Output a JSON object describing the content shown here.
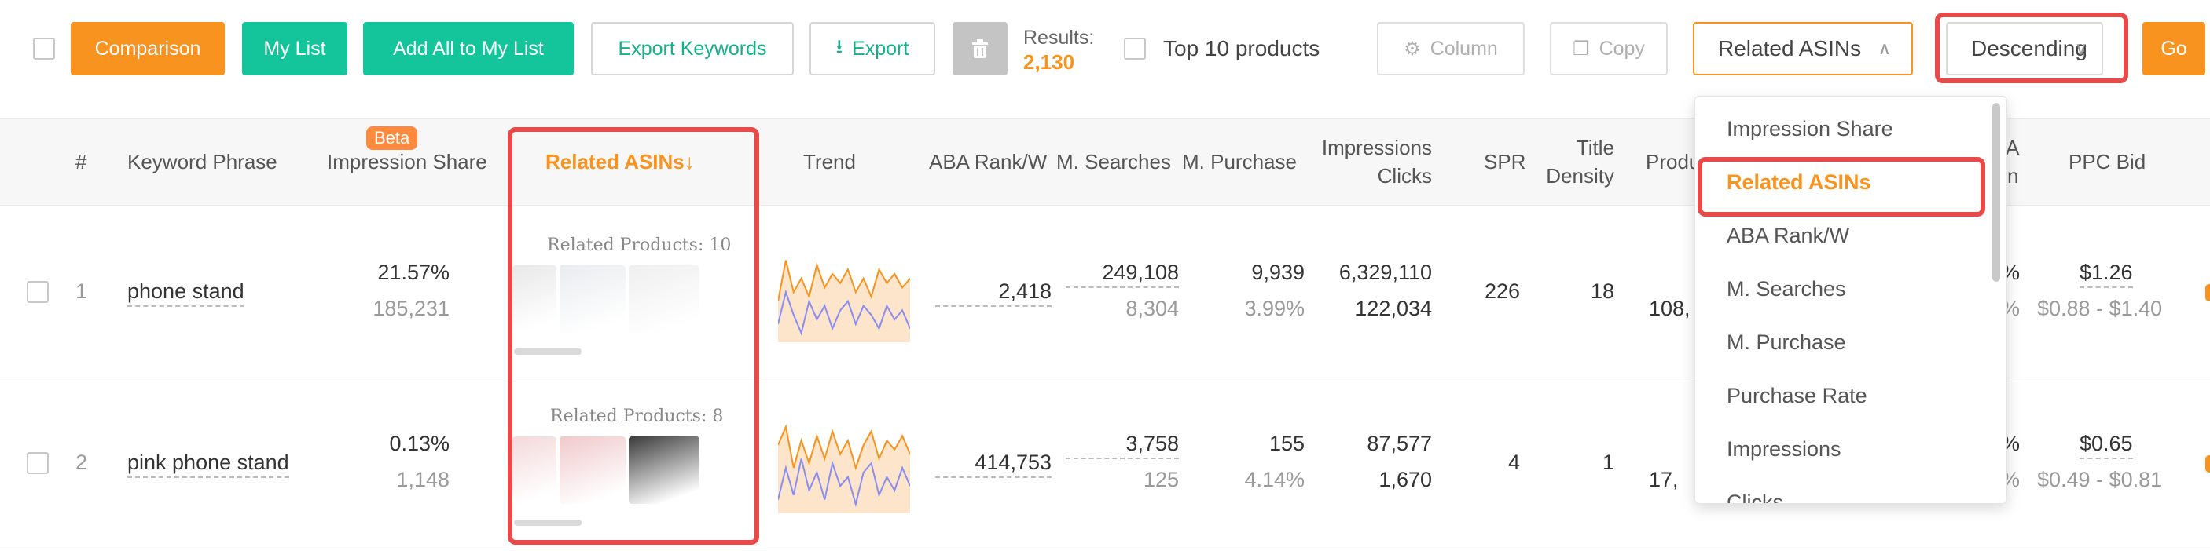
{
  "toolbar": {
    "comparison": "Comparison",
    "my_list": "My List",
    "add_all": "Add All to My List",
    "export_keywords": "Export Keywords",
    "export": "Export",
    "results_label": "Results:",
    "results_value": "2,130",
    "top10": "Top 10 products",
    "column": "Column",
    "copy": "Copy",
    "sort_field": "Related ASINs",
    "sort_order": "Descending",
    "go": "Go"
  },
  "icons": {
    "export": "download-icon",
    "delete": "trash-icon",
    "column": "gear-icon",
    "copy": "copy-icon",
    "chevron_up": "chevron-up-icon",
    "chevron_down": "chevron-down-icon"
  },
  "table": {
    "headers": {
      "index": "#",
      "keyword": "Keyword Phrase",
      "beta": "Beta",
      "impression_share": "Impression Share",
      "related_asins": "Related ASINs↓",
      "trend": "Trend",
      "aba_rank": "ABA Rank/W",
      "m_searches": "M. Searches",
      "m_purchase": "M. Purchase",
      "impressions": "Impressions",
      "clicks": "Clicks",
      "spr": "SPR",
      "title": "Title",
      "density": "Density",
      "products": "Produ",
      "partial_a": "A",
      "partial_n": "n",
      "ppc_bid": "PPC Bid"
    },
    "rows": [
      {
        "index": "1",
        "keyword": "phone stand",
        "impression_share": "21.57%",
        "impression_share_sub": "185,231",
        "related_products": "Related Products: 10",
        "aba_rank": "2,418",
        "m_searches": "249,108",
        "m_searches_sub": "8,304",
        "m_purchase": "9,939",
        "m_purchase_sub": "3.99%",
        "impressions": "6,329,110",
        "clicks": "122,034",
        "spr": "226",
        "title_density": "18",
        "products": "108,",
        "partial_pct": "%",
        "partial_pct_sub": "%",
        "ppc_bid": "$1.26",
        "ppc_range": "$0.88 - $1.40",
        "trend": {
          "search": [
            0.55,
            0.1,
            0.45,
            0.3,
            0.5,
            0.15,
            0.4,
            0.25,
            0.35,
            0.2,
            0.45,
            0.3,
            0.5,
            0.2,
            0.35,
            0.25,
            0.4,
            0.3
          ],
          "purchase": [
            0.8,
            0.45,
            0.7,
            0.9,
            0.55,
            0.75,
            0.6,
            0.85,
            0.65,
            0.55,
            0.8,
            0.6,
            0.7,
            0.85,
            0.6,
            0.75,
            0.65,
            0.85
          ]
        },
        "thumbs": [
          "#e8e8e8",
          "#e9ecef",
          "#efefef"
        ]
      },
      {
        "index": "2",
        "keyword": "pink phone stand",
        "impression_share": "0.13%",
        "impression_share_sub": "1,148",
        "related_products": "Related Products: 8",
        "aba_rank": "414,753",
        "m_searches": "3,758",
        "m_searches_sub": "125",
        "m_purchase": "155",
        "m_purchase_sub": "4.14%",
        "impressions": "87,577",
        "clicks": "1,670",
        "spr": "4",
        "title_density": "1",
        "products": "17,",
        "partial_pct": "%",
        "partial_pct_sub": "%",
        "ppc_bid": "$0.65",
        "ppc_range": "$0.49 - $0.81",
        "trend": {
          "search": [
            0.25,
            0.05,
            0.5,
            0.2,
            0.45,
            0.15,
            0.4,
            0.1,
            0.35,
            0.2,
            0.5,
            0.25,
            0.1,
            0.4,
            0.2,
            0.3,
            0.15,
            0.35
          ],
          "purchase": [
            0.85,
            0.5,
            0.8,
            0.4,
            0.75,
            0.55,
            0.85,
            0.45,
            0.7,
            0.6,
            0.9,
            0.55,
            0.45,
            0.8,
            0.6,
            0.75,
            0.5,
            0.7
          ]
        },
        "thumbs": [
          "#f3d9da",
          "#f0c9cc",
          "#3a3a3a"
        ]
      }
    ]
  },
  "dropdown": {
    "items": [
      "Impression Share",
      "Related ASINs",
      "ABA Rank/W",
      "M. Searches",
      "M. Purchase",
      "Purchase Rate",
      "Impressions",
      "Clicks"
    ],
    "selected": "Related ASINs"
  },
  "colors": {
    "accent": "#f7931e",
    "green": "#14c49a",
    "highlight": "#e84a4a",
    "trend_search": "#8a8cf0",
    "trend_purchase": "#f7931e"
  }
}
